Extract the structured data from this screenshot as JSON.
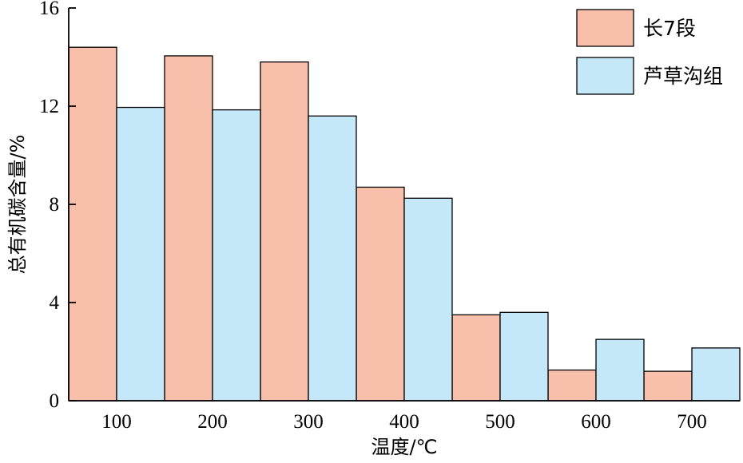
{
  "chart_data": {
    "type": "bar",
    "categories": [
      "100",
      "200",
      "300",
      "400",
      "500",
      "600",
      "700"
    ],
    "series": [
      {
        "name": "长7段",
        "values": [
          14.4,
          14.05,
          13.8,
          8.7,
          3.5,
          1.25,
          1.2
        ],
        "color": "#f8bfaa"
      },
      {
        "name": "芦草沟组",
        "values": [
          11.95,
          11.85,
          11.6,
          8.25,
          3.6,
          2.5,
          2.15
        ],
        "color": "#c4e8f8"
      }
    ],
    "xlabel": "温度/℃",
    "ylabel": "总有机碳含量/%",
    "ylim": [
      0,
      16
    ],
    "yticks": [
      0,
      4,
      8,
      12,
      16
    ],
    "grid": false,
    "legend_position": "top-right"
  }
}
